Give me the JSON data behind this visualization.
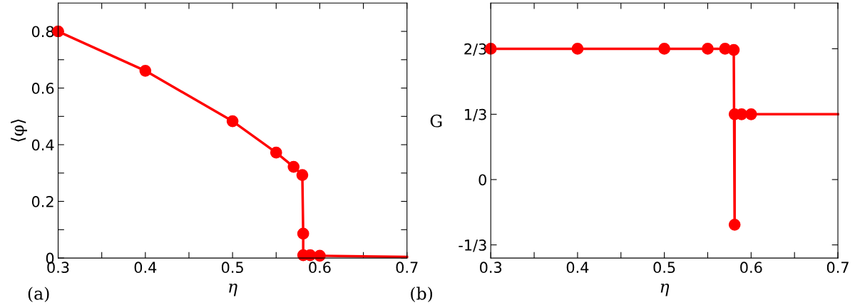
{
  "chart_data": [
    {
      "type": "line",
      "xlabel": "η",
      "ylabel": "⟨φ⟩",
      "annotations": [
        "(a)"
      ],
      "marker": "circle",
      "line_style": "solid",
      "grid": false,
      "legend": false,
      "xlim": [
        0.3,
        0.7
      ],
      "ylim": [
        0,
        0.9
      ],
      "xticks": [
        0.3,
        {
          "value": 0.35,
          "label": null
        },
        0.4,
        {
          "value": 0.45,
          "label": null
        },
        0.5,
        {
          "value": 0.55,
          "label": null
        },
        0.6,
        {
          "value": 0.65,
          "label": null
        },
        0.7
      ],
      "yticks": [
        0,
        {
          "value": 0.1,
          "label": null
        },
        0.2,
        {
          "value": 0.3,
          "label": null
        },
        0.4,
        {
          "value": 0.5,
          "label": null
        },
        0.6,
        {
          "value": 0.7,
          "label": null
        },
        0.8
      ],
      "series": [
        {
          "color": "#ff0000",
          "x": [
            0.3,
            0.4,
            0.5,
            0.55,
            0.57,
            0.58,
            0.581,
            0.581,
            0.589,
            0.6
          ],
          "values": [
            0.8,
            0.661,
            0.483,
            0.372,
            0.322,
            0.293,
            0.086,
            0.01,
            0.01,
            0.008
          ]
        },
        {
          "color": "#ff0000",
          "marker": "none",
          "x": [
            0.6,
            0.7
          ],
          "values": [
            0.008,
            0.004
          ]
        }
      ]
    },
    {
      "type": "line",
      "xlabel": "η",
      "ylabel": "G",
      "annotations": [
        "(b)"
      ],
      "marker": "circle",
      "line_style": "solid",
      "grid": false,
      "legend": false,
      "xlim": [
        0.3,
        0.7
      ],
      "ylim": [
        -0.4,
        0.9
      ],
      "xticks": [
        0.3,
        {
          "value": 0.35,
          "label": null
        },
        0.4,
        {
          "value": 0.45,
          "label": null
        },
        0.5,
        {
          "value": 0.55,
          "label": null
        },
        0.6,
        {
          "value": 0.65,
          "label": null
        },
        0.7
      ],
      "yticks": [
        {
          "value": -0.333,
          "label": "-1/3"
        },
        0,
        {
          "value": 0.333,
          "label": "1/3"
        },
        {
          "value": 0.667,
          "label": "2/3"
        }
      ],
      "series": [
        {
          "color": "#ff0000",
          "x": [
            0.3,
            0.4,
            0.5,
            0.55,
            0.57,
            0.58,
            0.581,
            0.581,
            0.589,
            0.6
          ],
          "values": [
            0.667,
            0.667,
            0.667,
            0.667,
            0.667,
            0.661,
            -0.23,
            0.333,
            0.333,
            0.333
          ]
        },
        {
          "color": "#ff0000",
          "marker": "none",
          "x": [
            0.6,
            0.7
          ],
          "values": [
            0.333,
            0.333
          ]
        }
      ]
    }
  ]
}
